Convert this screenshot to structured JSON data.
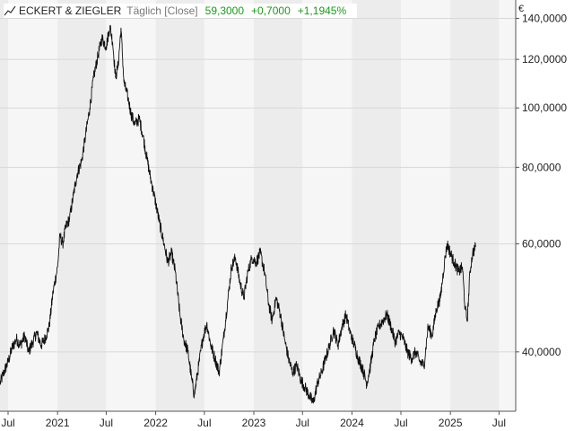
{
  "legend": {
    "name": "ECKERT & ZIEGLER",
    "period": "Täglich [Close]",
    "last": "59,3000",
    "change": "+0,7000",
    "change_pct": "+1,1945%",
    "icon": "line-chart-icon"
  },
  "currency_label": "€",
  "colors": {
    "line": "#111111",
    "positive": "#1a9a1a",
    "band_light": "#f6f6f6",
    "band_dark": "#ececec",
    "grid": "#d8d8d8",
    "axis": "#555555"
  },
  "chart_data": {
    "type": "line",
    "title": "",
    "xlabel": "",
    "ylabel": "",
    "y_scale": "log",
    "ylim": [
      32,
      150
    ],
    "xlim": [
      "2020-06-01",
      "2025-09-01"
    ],
    "y_ticks": [
      {
        "value": 40,
        "label": "40,0000"
      },
      {
        "value": 60,
        "label": "60,0000"
      },
      {
        "value": 80,
        "label": "80,0000"
      },
      {
        "value": 100,
        "label": "100,0000"
      },
      {
        "value": 120,
        "label": "120,0000"
      },
      {
        "value": 140,
        "label": "140,0000"
      }
    ],
    "x_ticks": [
      {
        "date": "2020-07-01",
        "label": "Jul"
      },
      {
        "date": "2021-01-01",
        "label": "2021"
      },
      {
        "date": "2021-07-01",
        "label": "Jul"
      },
      {
        "date": "2022-01-01",
        "label": "2022"
      },
      {
        "date": "2022-07-01",
        "label": "Jul"
      },
      {
        "date": "2023-01-01",
        "label": "2023"
      },
      {
        "date": "2023-07-01",
        "label": "Jul"
      },
      {
        "date": "2024-01-01",
        "label": "2024"
      },
      {
        "date": "2024-07-01",
        "label": "Jul"
      },
      {
        "date": "2025-01-01",
        "label": "2025"
      },
      {
        "date": "2025-07-01",
        "label": "Jul"
      }
    ],
    "series": [
      {
        "points": [
          [
            "2020-06-01",
            35.5
          ],
          [
            "2020-06-15",
            37.0
          ],
          [
            "2020-07-01",
            38.5
          ],
          [
            "2020-07-15",
            40.5
          ],
          [
            "2020-08-01",
            42.0
          ],
          [
            "2020-08-15",
            41.0
          ],
          [
            "2020-09-01",
            42.5
          ],
          [
            "2020-09-15",
            40.0
          ],
          [
            "2020-10-01",
            41.5
          ],
          [
            "2020-10-15",
            43.0
          ],
          [
            "2020-11-01",
            41.0
          ],
          [
            "2020-11-15",
            42.0
          ],
          [
            "2020-12-01",
            44.0
          ],
          [
            "2020-12-15",
            50.0
          ],
          [
            "2021-01-01",
            55.0
          ],
          [
            "2021-01-10",
            62.0
          ],
          [
            "2021-01-20",
            60.0
          ],
          [
            "2021-02-01",
            64.0
          ],
          [
            "2021-02-15",
            66.0
          ],
          [
            "2021-03-01",
            72.0
          ],
          [
            "2021-03-15",
            78.0
          ],
          [
            "2021-04-01",
            82.0
          ],
          [
            "2021-04-15",
            90.0
          ],
          [
            "2021-05-01",
            100.0
          ],
          [
            "2021-05-15",
            112.0
          ],
          [
            "2021-06-01",
            122.0
          ],
          [
            "2021-06-15",
            130.0
          ],
          [
            "2021-07-01",
            126.0
          ],
          [
            "2021-07-15",
            136.0
          ],
          [
            "2021-07-25",
            128.0
          ],
          [
            "2021-08-05",
            112.0
          ],
          [
            "2021-08-15",
            118.0
          ],
          [
            "2021-08-25",
            135.0
          ],
          [
            "2021-09-05",
            110.0
          ],
          [
            "2021-09-20",
            104.0
          ],
          [
            "2021-10-01",
            98.0
          ],
          [
            "2021-10-15",
            94.0
          ],
          [
            "2021-11-01",
            96.0
          ],
          [
            "2021-11-15",
            90.0
          ],
          [
            "2021-12-01",
            82.0
          ],
          [
            "2021-12-15",
            76.0
          ],
          [
            "2022-01-01",
            70.0
          ],
          [
            "2022-01-15",
            65.0
          ],
          [
            "2022-02-01",
            60.0
          ],
          [
            "2022-02-15",
            56.0
          ],
          [
            "2022-03-01",
            58.0
          ],
          [
            "2022-03-15",
            54.0
          ],
          [
            "2022-04-01",
            46.0
          ],
          [
            "2022-04-15",
            42.0
          ],
          [
            "2022-05-01",
            40.0
          ],
          [
            "2022-05-15",
            36.0
          ],
          [
            "2022-05-25",
            34.0
          ],
          [
            "2022-06-10",
            38.0
          ],
          [
            "2022-06-25",
            42.0
          ],
          [
            "2022-07-10",
            44.5
          ],
          [
            "2022-07-25",
            41.0
          ],
          [
            "2022-08-10",
            39.0
          ],
          [
            "2022-08-25",
            37.0
          ],
          [
            "2022-09-10",
            42.0
          ],
          [
            "2022-09-25",
            48.0
          ],
          [
            "2022-10-10",
            55.0
          ],
          [
            "2022-10-25",
            57.0
          ],
          [
            "2022-11-10",
            52.0
          ],
          [
            "2022-11-25",
            49.0
          ],
          [
            "2022-12-10",
            54.0
          ],
          [
            "2022-12-25",
            57.0
          ],
          [
            "2023-01-10",
            56.0
          ],
          [
            "2023-01-25",
            58.0
          ],
          [
            "2023-02-10",
            54.0
          ],
          [
            "2023-02-25",
            48.0
          ],
          [
            "2023-03-10",
            45.0
          ],
          [
            "2023-03-25",
            49.0
          ],
          [
            "2023-04-10",
            46.0
          ],
          [
            "2023-04-25",
            42.0
          ],
          [
            "2023-05-10",
            39.0
          ],
          [
            "2023-05-25",
            37.0
          ],
          [
            "2023-06-10",
            38.0
          ],
          [
            "2023-06-25",
            36.0
          ],
          [
            "2023-07-10",
            35.0
          ],
          [
            "2023-07-25",
            34.0
          ],
          [
            "2023-08-10",
            33.0
          ],
          [
            "2023-08-25",
            35.5
          ],
          [
            "2023-09-10",
            37.0
          ],
          [
            "2023-09-25",
            39.0
          ],
          [
            "2023-10-10",
            41.0
          ],
          [
            "2023-10-25",
            43.5
          ],
          [
            "2023-11-10",
            41.0
          ],
          [
            "2023-11-25",
            44.0
          ],
          [
            "2023-12-10",
            46.0
          ],
          [
            "2023-12-25",
            43.0
          ],
          [
            "2024-01-10",
            41.0
          ],
          [
            "2024-01-25",
            39.0
          ],
          [
            "2024-02-10",
            37.5
          ],
          [
            "2024-02-25",
            35.5
          ],
          [
            "2024-03-10",
            38.0
          ],
          [
            "2024-03-25",
            42.0
          ],
          [
            "2024-04-10",
            44.0
          ],
          [
            "2024-04-25",
            45.0
          ],
          [
            "2024-05-10",
            46.0
          ],
          [
            "2024-05-25",
            44.0
          ],
          [
            "2024-06-10",
            41.5
          ],
          [
            "2024-06-25",
            43.0
          ],
          [
            "2024-07-10",
            42.0
          ],
          [
            "2024-07-25",
            40.0
          ],
          [
            "2024-08-10",
            39.0
          ],
          [
            "2024-08-25",
            40.0
          ],
          [
            "2024-09-10",
            38.5
          ],
          [
            "2024-09-25",
            38.0
          ],
          [
            "2024-10-10",
            44.0
          ],
          [
            "2024-10-25",
            42.5
          ],
          [
            "2024-11-10",
            47.0
          ],
          [
            "2024-11-25",
            49.0
          ],
          [
            "2024-12-10",
            56.0
          ],
          [
            "2024-12-20",
            60.0
          ],
          [
            "2025-01-01",
            58.0
          ],
          [
            "2025-01-15",
            56.0
          ],
          [
            "2025-02-01",
            54.0
          ],
          [
            "2025-02-15",
            55.0
          ],
          [
            "2025-02-25",
            47.0
          ],
          [
            "2025-03-05",
            45.0
          ],
          [
            "2025-03-15",
            54.0
          ],
          [
            "2025-03-25",
            58.0
          ],
          [
            "2025-04-05",
            59.3
          ]
        ]
      }
    ]
  }
}
